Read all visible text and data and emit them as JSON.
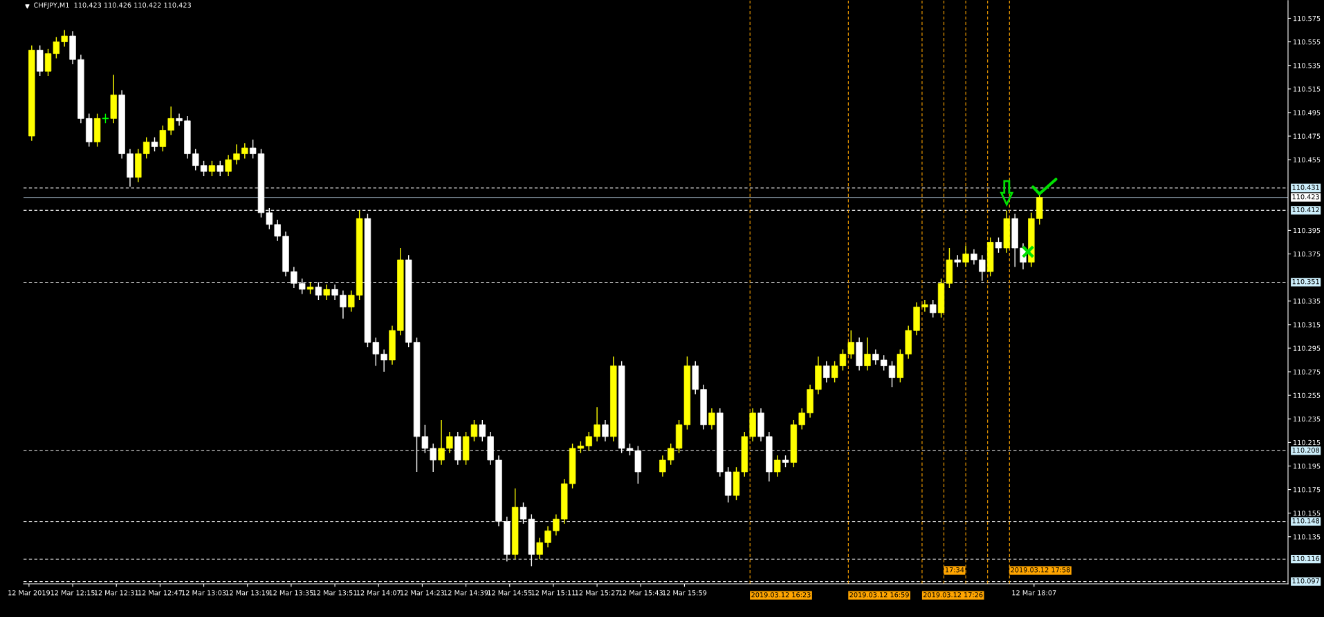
{
  "chart_data": {
    "type": "candlestick",
    "title": "CHFJPY,M1  110.423 110.426 110.422 110.423",
    "x": [
      "2019-03-12T12:00",
      "2019-03-12T12:03",
      "2019-03-12T12:06",
      "2019-03-12T12:09",
      "2019-03-12T12:12",
      "2019-03-12T12:15",
      "2019-03-12T12:18",
      "2019-03-12T12:21",
      "2019-03-12T12:24",
      "2019-03-12T12:27",
      "2019-03-12T12:30",
      "2019-03-12T12:33",
      "2019-03-12T12:36",
      "2019-03-12T12:39",
      "2019-03-12T12:42",
      "2019-03-12T12:45",
      "2019-03-12T12:48",
      "2019-03-12T12:51",
      "2019-03-12T12:54",
      "2019-03-12T12:57",
      "2019-03-12T13:00",
      "2019-03-12T13:03",
      "2019-03-12T13:06",
      "2019-03-12T13:09",
      "2019-03-12T13:12",
      "2019-03-12T13:15",
      "2019-03-12T13:18",
      "2019-03-12T13:21",
      "2019-03-12T13:24",
      "2019-03-12T13:27",
      "2019-03-12T13:30",
      "2019-03-12T13:33",
      "2019-03-12T13:36",
      "2019-03-12T13:39",
      "2019-03-12T13:42",
      "2019-03-12T13:45",
      "2019-03-12T13:48",
      "2019-03-12T13:51",
      "2019-03-12T13:54",
      "2019-03-12T13:57",
      "2019-03-12T14:00",
      "2019-03-12T14:03",
      "2019-03-12T14:06",
      "2019-03-12T14:09",
      "2019-03-12T14:12",
      "2019-03-12T14:15",
      "2019-03-12T14:18",
      "2019-03-12T14:21",
      "2019-03-12T14:24",
      "2019-03-12T14:27",
      "2019-03-12T14:30",
      "2019-03-12T14:33",
      "2019-03-12T14:36",
      "2019-03-12T14:39",
      "2019-03-12T14:42",
      "2019-03-12T14:45",
      "2019-03-12T14:48",
      "2019-03-12T14:51",
      "2019-03-12T14:54",
      "2019-03-12T14:57",
      "2019-03-12T15:00",
      "2019-03-12T15:03",
      "2019-03-12T15:06",
      "2019-03-12T15:09",
      "2019-03-12T15:12",
      "2019-03-12T15:15",
      "2019-03-12T15:18",
      "2019-03-12T15:21",
      "2019-03-12T15:24",
      "2019-03-12T15:27",
      "2019-03-12T15:30",
      "2019-03-12T15:33",
      "2019-03-12T15:36",
      "2019-03-12T15:39",
      "2019-03-12T15:42",
      "2019-03-12T15:51",
      "2019-03-12T15:54",
      "2019-03-12T15:57",
      "2019-03-12T16:00",
      "2019-03-12T16:03",
      "2019-03-12T16:06",
      "2019-03-12T16:09",
      "2019-03-12T16:12",
      "2019-03-12T16:15",
      "2019-03-12T16:18",
      "2019-03-12T16:21",
      "2019-03-12T16:24",
      "2019-03-12T16:27",
      "2019-03-12T16:30",
      "2019-03-12T16:33",
      "2019-03-12T16:36",
      "2019-03-12T16:39",
      "2019-03-12T16:42",
      "2019-03-12T16:45",
      "2019-03-12T16:48",
      "2019-03-12T16:51",
      "2019-03-12T16:54",
      "2019-03-12T16:57",
      "2019-03-12T17:00",
      "2019-03-12T17:03",
      "2019-03-12T17:06",
      "2019-03-12T17:09",
      "2019-03-12T17:12",
      "2019-03-12T17:15",
      "2019-03-12T17:18",
      "2019-03-12T17:21",
      "2019-03-12T17:24",
      "2019-03-12T17:27",
      "2019-03-12T17:30",
      "2019-03-12T17:33",
      "2019-03-12T17:36",
      "2019-03-12T17:39",
      "2019-03-12T17:42",
      "2019-03-12T17:45",
      "2019-03-12T17:48",
      "2019-03-12T17:51",
      "2019-03-12T17:54",
      "2019-03-12T17:57",
      "2019-03-12T18:00",
      "2019-03-12T18:03",
      "2019-03-12T18:06",
      "2019-03-12T18:09"
    ],
    "ohlc": [
      [
        110.475,
        110.552,
        110.471,
        110.548
      ],
      [
        110.548,
        110.552,
        110.526,
        110.53
      ],
      [
        110.53,
        110.549,
        110.526,
        110.545
      ],
      [
        110.545,
        110.559,
        110.541,
        110.555
      ],
      [
        110.555,
        110.565,
        110.551,
        110.56
      ],
      [
        110.56,
        110.564,
        110.536,
        110.54
      ],
      [
        110.54,
        110.544,
        110.486,
        110.49
      ],
      [
        110.49,
        110.494,
        110.466,
        110.47
      ],
      [
        110.47,
        110.494,
        110.466,
        110.49
      ],
      [
        110.49,
        110.494,
        110.486,
        110.49
      ],
      [
        110.49,
        110.527,
        110.486,
        110.51
      ],
      [
        110.51,
        110.514,
        110.456,
        110.46
      ],
      [
        110.46,
        110.464,
        110.432,
        110.44
      ],
      [
        110.44,
        110.464,
        110.436,
        110.46
      ],
      [
        110.46,
        110.474,
        110.456,
        110.47
      ],
      [
        110.47,
        110.474,
        110.462,
        110.466
      ],
      [
        110.466,
        110.484,
        110.462,
        110.48
      ],
      [
        110.48,
        110.5,
        110.476,
        110.49
      ],
      [
        110.49,
        110.494,
        110.484,
        110.488
      ],
      [
        110.488,
        110.492,
        110.456,
        110.46
      ],
      [
        110.46,
        110.464,
        110.446,
        110.45
      ],
      [
        110.45,
        110.454,
        110.441,
        110.445
      ],
      [
        110.445,
        110.454,
        110.441,
        110.45
      ],
      [
        110.45,
        110.454,
        110.441,
        110.445
      ],
      [
        110.445,
        110.459,
        110.441,
        110.455
      ],
      [
        110.455,
        110.468,
        110.451,
        110.46
      ],
      [
        110.46,
        110.469,
        110.456,
        110.465
      ],
      [
        110.465,
        110.472,
        110.456,
        110.46
      ],
      [
        110.46,
        110.464,
        110.406,
        110.41
      ],
      [
        110.41,
        110.414,
        110.396,
        110.4
      ],
      [
        110.4,
        110.404,
        110.386,
        110.39
      ],
      [
        110.39,
        110.394,
        110.356,
        110.36
      ],
      [
        110.36,
        110.364,
        110.346,
        110.35
      ],
      [
        110.35,
        110.354,
        110.341,
        110.345
      ],
      [
        110.345,
        110.351,
        110.341,
        110.347
      ],
      [
        110.347,
        110.351,
        110.336,
        110.34
      ],
      [
        110.34,
        110.349,
        110.336,
        110.345
      ],
      [
        110.345,
        110.349,
        110.336,
        110.34
      ],
      [
        110.34,
        110.344,
        110.32,
        110.33
      ],
      [
        110.33,
        110.344,
        110.326,
        110.34
      ],
      [
        110.34,
        110.412,
        110.336,
        110.405
      ],
      [
        110.405,
        110.409,
        110.296,
        110.3
      ],
      [
        110.3,
        110.304,
        110.28,
        110.29
      ],
      [
        110.29,
        110.294,
        110.275,
        110.285
      ],
      [
        110.285,
        110.314,
        110.281,
        110.31
      ],
      [
        110.31,
        110.38,
        110.306,
        110.37
      ],
      [
        110.37,
        110.374,
        110.296,
        110.3
      ],
      [
        110.3,
        110.304,
        110.19,
        110.22
      ],
      [
        110.22,
        110.23,
        110.206,
        110.21
      ],
      [
        110.21,
        110.214,
        110.19,
        110.2
      ],
      [
        110.2,
        110.234,
        110.196,
        110.21
      ],
      [
        110.21,
        110.224,
        110.206,
        110.22
      ],
      [
        110.22,
        110.224,
        110.196,
        110.2
      ],
      [
        110.2,
        110.224,
        110.196,
        110.22
      ],
      [
        110.22,
        110.234,
        110.216,
        110.23
      ],
      [
        110.23,
        110.234,
        110.216,
        110.22
      ],
      [
        110.22,
        110.224,
        110.196,
        110.2
      ],
      [
        110.2,
        110.204,
        110.144,
        110.148
      ],
      [
        110.148,
        110.152,
        110.114,
        110.12
      ],
      [
        110.12,
        110.176,
        110.116,
        110.16
      ],
      [
        110.16,
        110.164,
        110.146,
        110.15
      ],
      [
        110.15,
        110.154,
        110.11,
        110.12
      ],
      [
        110.12,
        110.134,
        110.116,
        110.13
      ],
      [
        110.13,
        110.144,
        110.126,
        110.14
      ],
      [
        110.14,
        110.154,
        110.136,
        110.15
      ],
      [
        110.15,
        110.184,
        110.146,
        110.18
      ],
      [
        110.18,
        110.214,
        110.176,
        110.21
      ],
      [
        110.21,
        110.216,
        110.206,
        110.212
      ],
      [
        110.212,
        110.224,
        110.208,
        110.22
      ],
      [
        110.22,
        110.245,
        110.216,
        110.23
      ],
      [
        110.23,
        110.234,
        110.216,
        110.22
      ],
      [
        110.22,
        110.288,
        110.216,
        110.28
      ],
      [
        110.28,
        110.284,
        110.206,
        110.21
      ],
      [
        110.21,
        110.214,
        110.204,
        110.208
      ],
      [
        110.208,
        110.212,
        110.18,
        110.19
      ],
      [
        110.19,
        110.204,
        110.186,
        110.2
      ],
      [
        110.2,
        110.214,
        110.196,
        110.21
      ],
      [
        110.21,
        110.234,
        110.206,
        110.23
      ],
      [
        110.23,
        110.288,
        110.226,
        110.28
      ],
      [
        110.28,
        110.284,
        110.256,
        110.26
      ],
      [
        110.26,
        110.264,
        110.226,
        110.23
      ],
      [
        110.23,
        110.244,
        110.226,
        110.24
      ],
      [
        110.24,
        110.244,
        110.186,
        110.19
      ],
      [
        110.19,
        110.194,
        110.164,
        110.17
      ],
      [
        110.17,
        110.194,
        110.166,
        110.19
      ],
      [
        110.19,
        110.224,
        110.186,
        110.22
      ],
      [
        110.22,
        110.244,
        110.216,
        110.24
      ],
      [
        110.24,
        110.244,
        110.216,
        110.22
      ],
      [
        110.22,
        110.224,
        110.182,
        110.19
      ],
      [
        110.19,
        110.204,
        110.186,
        110.2
      ],
      [
        110.2,
        110.204,
        110.194,
        110.198
      ],
      [
        110.198,
        110.234,
        110.194,
        110.23
      ],
      [
        110.23,
        110.244,
        110.226,
        110.24
      ],
      [
        110.24,
        110.264,
        110.236,
        110.26
      ],
      [
        110.26,
        110.288,
        110.256,
        110.28
      ],
      [
        110.28,
        110.284,
        110.266,
        110.27
      ],
      [
        110.27,
        110.284,
        110.266,
        110.28
      ],
      [
        110.28,
        110.294,
        110.276,
        110.29
      ],
      [
        110.29,
        110.31,
        110.286,
        110.3
      ],
      [
        110.3,
        110.304,
        110.276,
        110.28
      ],
      [
        110.28,
        110.304,
        110.276,
        110.29
      ],
      [
        110.29,
        110.294,
        110.281,
        110.285
      ],
      [
        110.285,
        110.289,
        110.276,
        110.28
      ],
      [
        110.28,
        110.284,
        110.262,
        110.27
      ],
      [
        110.27,
        110.294,
        110.266,
        110.29
      ],
      [
        110.29,
        110.314,
        110.286,
        110.31
      ],
      [
        110.31,
        110.334,
        110.306,
        110.33
      ],
      [
        110.33,
        110.336,
        110.326,
        110.332
      ],
      [
        110.332,
        110.336,
        110.321,
        110.325
      ],
      [
        110.325,
        110.354,
        110.321,
        110.35
      ],
      [
        110.35,
        110.38,
        110.346,
        110.37
      ],
      [
        110.37,
        110.374,
        110.364,
        110.368
      ],
      [
        110.368,
        110.382,
        110.364,
        110.375
      ],
      [
        110.375,
        110.379,
        110.366,
        110.37
      ],
      [
        110.37,
        110.374,
        110.352,
        110.36
      ],
      [
        110.36,
        110.389,
        110.356,
        110.385
      ],
      [
        110.385,
        110.389,
        110.376,
        110.38
      ],
      [
        110.38,
        110.412,
        110.376,
        110.405
      ],
      [
        110.405,
        110.409,
        110.364,
        110.38
      ],
      [
        110.38,
        110.384,
        110.362,
        110.368
      ],
      [
        110.368,
        110.41,
        110.364,
        110.405
      ],
      [
        110.405,
        110.426,
        110.4,
        110.423
      ]
    ],
    "colors": [
      "#ffff00",
      "#ffffff",
      "#ffff00",
      "#ffff00",
      "#ffff00",
      "#ffffff",
      "#ffffff",
      "#ffffff",
      "#ffff00",
      "#00ff00",
      "#ffff00",
      "#ffffff",
      "#ffffff",
      "#ffff00",
      "#ffff00",
      "#ffffff",
      "#ffff00",
      "#ffff00",
      "#ffffff",
      "#ffffff",
      "#ffffff",
      "#ffffff",
      "#ffff00",
      "#ffffff",
      "#ffff00",
      "#ffff00",
      "#ffff00",
      "#ffffff",
      "#ffffff",
      "#ffffff",
      "#ffffff",
      "#ffffff",
      "#ffffff",
      "#ffffff",
      "#ffff00",
      "#ffffff",
      "#ffff00",
      "#ffffff",
      "#ffffff",
      "#ffff00",
      "#ffff00",
      "#ffffff",
      "#ffffff",
      "#ffffff",
      "#ffff00",
      "#ffff00",
      "#ffffff",
      "#ffffff",
      "#ffffff",
      "#ffffff",
      "#ffff00",
      "#ffff00",
      "#ffffff",
      "#ffff00",
      "#ffff00",
      "#ffffff",
      "#ffffff",
      "#ffffff",
      "#ffffff",
      "#ffff00",
      "#ffffff",
      "#ffffff",
      "#ffff00",
      "#ffff00",
      "#ffff00",
      "#ffff00",
      "#ffff00",
      "#ffff00",
      "#ffff00",
      "#ffff00",
      "#ffffff",
      "#ffff00",
      "#ffffff",
      "#ffffff",
      "#ffffff",
      "#ffff00",
      "#ffff00",
      "#ffff00",
      "#ffff00",
      "#ffffff",
      "#ffffff",
      "#ffff00",
      "#ffffff",
      "#ffffff",
      "#ffff00",
      "#ffff00",
      "#ffff00",
      "#ffffff",
      "#ffffff",
      "#ffff00",
      "#ffffff",
      "#ffff00",
      "#ffff00",
      "#ffff00",
      "#ffff00",
      "#ffffff",
      "#ffff00",
      "#ffff00",
      "#ffff00",
      "#ffffff",
      "#ffff00",
      "#ffffff",
      "#ffffff",
      "#ffffff",
      "#ffff00",
      "#ffff00",
      "#ffff00",
      "#ffff00",
      "#ffffff",
      "#ffff00",
      "#ffff00",
      "#ffffff",
      "#ffff00",
      "#ffffff",
      "#ffffff",
      "#ffff00",
      "#ffffff",
      "#ffff00",
      "#ffffff",
      "#ffffff",
      "#ffff00",
      "#ffff00"
    ],
    "xlim": [
      "2019-03-12T11:57",
      "2019-03-12T19:40"
    ],
    "ylim": [
      110.095,
      110.59
    ],
    "xticks": [
      {
        "value": "2019-03-12T11:59",
        "label": "12 Mar 2019"
      },
      {
        "value": "2019-03-12T12:15",
        "label": "12 Mar 12:15"
      },
      {
        "value": "2019-03-12T12:31",
        "label": "12 Mar 12:31"
      },
      {
        "value": "2019-03-12T12:47",
        "label": "12 Mar 12:47"
      },
      {
        "value": "2019-03-12T13:03",
        "label": "12 Mar 13:03"
      },
      {
        "value": "2019-03-12T13:19",
        "label": "12 Mar 13:19"
      },
      {
        "value": "2019-03-12T13:35",
        "label": "12 Mar 13:35"
      },
      {
        "value": "2019-03-12T13:51",
        "label": "12 Mar 13:51"
      },
      {
        "value": "2019-03-12T14:07",
        "label": "12 Mar 14:07"
      },
      {
        "value": "2019-03-12T14:23",
        "label": "12 Mar 14:23"
      },
      {
        "value": "2019-03-12T14:39",
        "label": "12 Mar 14:39"
      },
      {
        "value": "2019-03-12T14:55",
        "label": "12 Mar 14:55"
      },
      {
        "value": "2019-03-12T15:11",
        "label": "12 Mar 15:11"
      },
      {
        "value": "2019-03-12T15:27",
        "label": "12 Mar 15:27"
      },
      {
        "value": "2019-03-12T15:43",
        "label": "12 Mar 15:43"
      },
      {
        "value": "2019-03-12T15:59",
        "label": "12 Mar 15:59"
      },
      {
        "value": "2019-03-12T18:07",
        "label": "12 Mar 18:07"
      }
    ],
    "yticks": [
      110.575,
      110.555,
      110.535,
      110.515,
      110.495,
      110.475,
      110.455,
      110.395,
      110.375,
      110.335,
      110.315,
      110.295,
      110.275,
      110.255,
      110.235,
      110.215,
      110.195,
      110.175,
      110.155,
      110.135
    ],
    "ref_lines": [
      {
        "axis": "y",
        "value": 110.431,
        "label": "110.431",
        "color": "#ffffff",
        "line_style": "dashed"
      },
      {
        "axis": "y",
        "value": 110.423,
        "label": "110.423",
        "color": "#8a9aa8",
        "line_style": "solid"
      },
      {
        "axis": "y",
        "value": 110.412,
        "label": "110.412",
        "color": "#ffffff",
        "line_style": "dashed"
      },
      {
        "axis": "y",
        "value": 110.351,
        "label": "110.351",
        "color": "#ffffff",
        "line_style": "dashed"
      },
      {
        "axis": "y",
        "value": 110.208,
        "label": "110.208",
        "color": "#ffffff",
        "line_style": "dashed"
      },
      {
        "axis": "y",
        "value": 110.148,
        "label": "110.148",
        "color": "#ffffff",
        "line_style": "dashed"
      },
      {
        "axis": "y",
        "value": 110.116,
        "label": "110.116",
        "color": "#ffffff",
        "line_style": "dashed"
      },
      {
        "axis": "y",
        "value": 110.097,
        "label": "110.097",
        "color": "#ffffff",
        "line_style": "dashed"
      },
      {
        "axis": "x",
        "value": "2019-03-12T16:23",
        "label": "2019.03.12 16:23",
        "color": "#ffa500",
        "line_style": "dashed"
      },
      {
        "axis": "x",
        "value": "2019-03-12T16:59",
        "label": "2019.03.12 16:59",
        "color": "#ffa500",
        "line_style": "dashed"
      },
      {
        "axis": "x",
        "value": "2019-03-12T17:26",
        "label": "2019.03.12 17:26",
        "color": "#ffa500",
        "line_style": "dashed"
      },
      {
        "axis": "x",
        "value": "2019-03-12T17:34",
        "label": "17:34",
        "color": "#ffa500",
        "line_style": "dashed"
      },
      {
        "axis": "x",
        "value": "2019-03-12T17:42",
        "label": null,
        "color": "#ffa500",
        "line_style": "dashed"
      },
      {
        "axis": "x",
        "value": "2019-03-12T17:50",
        "label": null,
        "color": "#ffa500",
        "line_style": "dashed"
      },
      {
        "axis": "x",
        "value": "2019-03-12T17:58",
        "label": "2019.03.12 17:58",
        "color": "#ffa500",
        "line_style": "dashed"
      }
    ],
    "grid": false
  }
}
